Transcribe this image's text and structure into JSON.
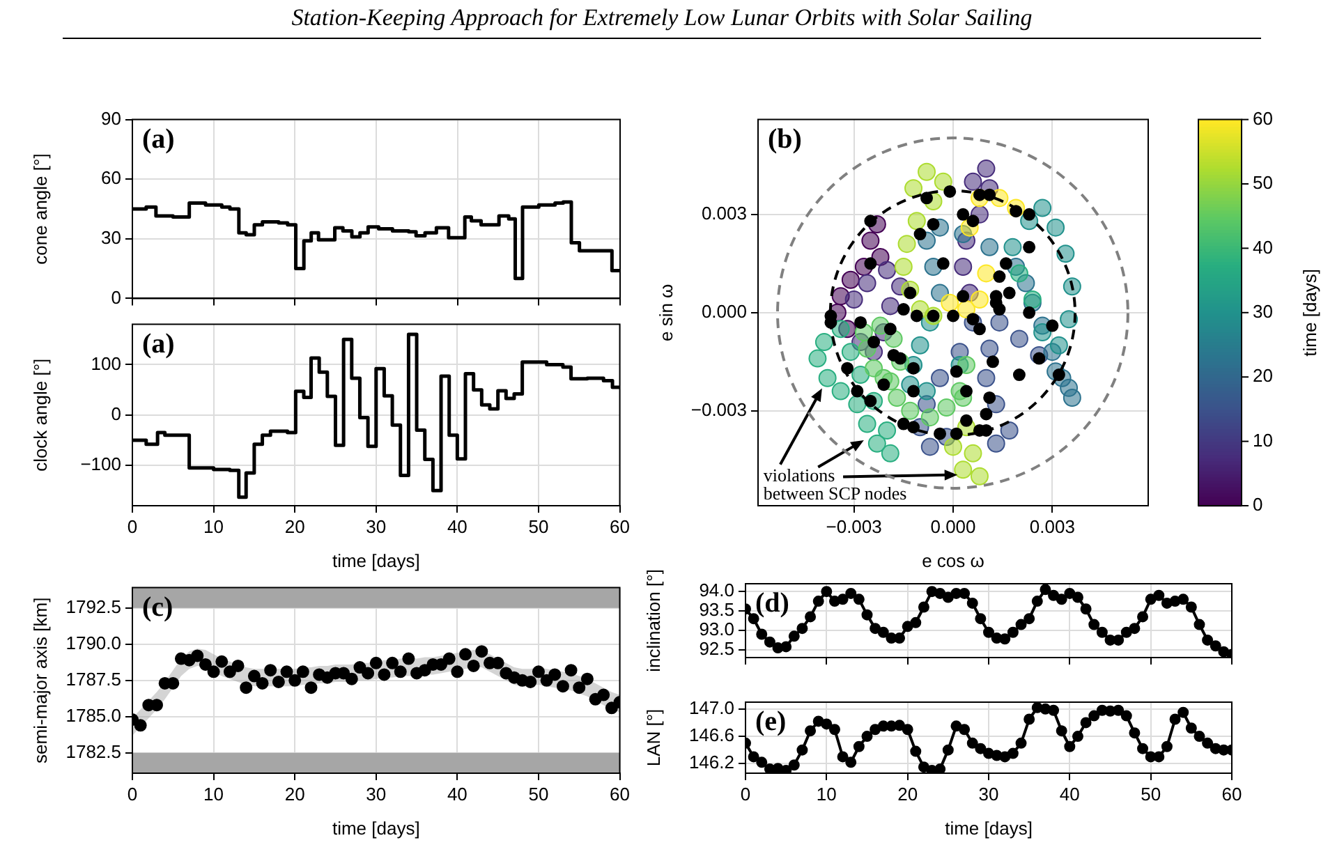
{
  "chart_data": [
    {
      "type": "step",
      "title": "(a)",
      "ylabel": "cone angle [°]",
      "annotations": [
        "Station-Keeping Approach for Extremely Low Lunar Orbits with Solar Sailing"
      ],
      "series": [
        {
          "color": "#000000",
          "x": [
            0,
            1.7,
            2.9,
            5,
            7,
            9,
            11,
            12,
            13.1,
            14,
            15,
            16,
            18,
            19.1,
            20.1,
            21.1,
            22,
            22.9,
            24.9,
            25.9,
            27,
            28,
            29,
            30.3,
            32,
            34,
            34.9,
            36,
            37.4,
            38.9,
            40.9,
            41.7,
            42.9,
            45.1,
            46.3,
            47.1,
            48,
            50,
            52,
            53,
            54,
            55,
            59,
            60
          ],
          "values": [
            45,
            46,
            41.5,
            41,
            48,
            47,
            46,
            45,
            33,
            32,
            37,
            38.5,
            38,
            37,
            15,
            29,
            33,
            29.5,
            35.5,
            34,
            31,
            33,
            36,
            35,
            34,
            33.5,
            31.5,
            33,
            35.5,
            30.5,
            41,
            39,
            37,
            41.5,
            40,
            10,
            46,
            47,
            48,
            48.5,
            28,
            24,
            14,
            14
          ]
        }
      ],
      "xlim": [
        0,
        60
      ],
      "xticks": [
        0,
        10,
        20,
        30,
        40,
        50,
        60
      ],
      "ylim": [
        0,
        90
      ],
      "yticks": [
        0,
        30,
        60,
        90
      ],
      "tick_labels": "y",
      "grid": true
    },
    {
      "type": "step",
      "title": "(a)",
      "xlabel": "time [days]",
      "ylabel": "clock angle [°]",
      "series": [
        {
          "color": "#000000",
          "x": [
            0,
            1.7,
            3.1,
            4,
            7,
            10,
            12,
            13.1,
            14,
            15,
            16,
            17,
            19.1,
            20.1,
            21.1,
            22,
            23,
            24,
            25,
            26,
            27,
            28,
            29,
            30,
            31,
            32,
            33,
            34,
            35,
            36,
            37,
            38,
            39,
            40,
            41,
            42,
            43,
            44,
            45,
            46,
            47,
            48,
            51,
            53,
            54,
            56,
            58,
            59.1,
            60
          ],
          "values": [
            -50,
            -58,
            -35,
            -40,
            -105,
            -108,
            -110,
            -163,
            -115,
            -58,
            -40,
            -32,
            -35,
            47,
            35,
            113,
            85,
            37,
            -60,
            150,
            73,
            -5,
            -62,
            92,
            38,
            -20,
            -120,
            160,
            -30,
            -88,
            -150,
            77,
            -40,
            -87,
            82,
            50,
            20,
            12,
            48,
            33,
            42,
            105,
            100,
            95,
            72,
            73,
            68,
            55,
            55
          ]
        }
      ],
      "xlim": [
        0,
        60
      ],
      "xticks": [
        0,
        10,
        20,
        30,
        40,
        50,
        60
      ],
      "ylim": [
        -180,
        180
      ],
      "yticks": [
        {
          "value": -100,
          "label": "−100"
        },
        0,
        100
      ],
      "grid": true
    },
    {
      "type": "scatter",
      "title": "(b)",
      "xlabel": "e cos ω",
      "ylabel": "e sin ω",
      "clabel": "time [days]",
      "clim": [
        0,
        60
      ],
      "cticks": [
        0,
        10,
        20,
        30,
        40,
        50,
        60
      ],
      "marker": "circle",
      "annotations": [
        {
          "text": "violations between SCP nodes",
          "x": -0.0027,
          "y": -0.0039
        }
      ],
      "series": [
        {
          "x": [
            -0.0023,
            -0.0025,
            -0.0022,
            -0.0027,
            -0.0031,
            -0.0034,
            -0.0035,
            -0.0032,
            -0.0028,
            -0.0024,
            -0.0021,
            -0.0019,
            -0.0016,
            -0.002,
            -0.0026,
            -0.003,
            0.0006,
            0.001,
            0.0011,
            0.0008,
            0.0004,
            0.0003,
            0.0005,
            0.0006,
            0.0002,
            -0.0004,
            -0.0008,
            -0.001,
            -0.0007,
            -0.0002,
            0.0013,
            0.0017,
            0.0013,
            0.001,
            0.0011,
            0.0014,
            0.002,
            0.0026,
            0.0031,
            0.0035,
            0.0036,
            0.0033,
            0.003,
            0.0027,
            0.0024,
            0.0022,
            0.0019,
            0.0011,
            0.0003,
            -0.0004,
            -0.0008,
            -0.0006,
            -0.0004,
            -0.0007,
            -0.001,
            -0.0012,
            -0.0013,
            -0.0008,
            0.0002,
            0.0018,
            0.0023,
            0.0027,
            0.0031,
            0.0034,
            0.0036,
            0.0035,
            0.0032,
            0.0027,
            0.0024,
            0.002,
            -0.0034,
            -0.0039,
            -0.0041,
            -0.0038,
            -0.0034,
            -0.0029,
            -0.0026,
            -0.0023,
            -0.0019,
            -0.002,
            -0.0024,
            -0.0028,
            -0.0031,
            -0.0027,
            -0.0022,
            -0.0018,
            -0.0016,
            -0.0019,
            -0.0024,
            -0.0026,
            -0.0021,
            -0.0017,
            -0.0013,
            -0.0007,
            -0.0002,
            0.0002,
            0.0004,
            0.0003,
            0.0004,
            0.0006,
            0.0008,
            0.0003,
            0,
            -0.0012,
            -0.0008,
            -0.0003,
            -0.0006,
            -0.0011,
            -0.0014,
            -0.0015,
            -0.0013,
            -0.001,
            -0.0006,
            -0.0001,
            0.0004,
            0.0008,
            0.001,
            0.0005,
            0.0008,
            0.0014,
            0.0019
          ],
          "values": [
            0.0027,
            0.0022,
            0.0017,
            0.0014,
            0.001,
            0.0005,
            0,
            -0.0005,
            -0.0009,
            -0.0012,
            -0.0006,
            0.0002,
            0.0008,
            0.0013,
            0.0009,
            0.0004,
            0.004,
            0.0044,
            0.0038,
            0.003,
            0.0022,
            0.0014,
            0.0006,
            -0.0003,
            -0.0012,
            -0.002,
            -0.0028,
            -0.0035,
            -0.0041,
            -0.0038,
            -0.004,
            -0.0036,
            -0.0028,
            -0.002,
            -0.0011,
            -0.0003,
            -0.0008,
            -0.0013,
            -0.0018,
            -0.0023,
            -0.0026,
            -0.002,
            -0.0012,
            -0.0004,
            0.0003,
            0.0009,
            0.0014,
            0.002,
            0.0024,
            0.0026,
            0.0022,
            0.0014,
            0.0006,
            -0.0003,
            -0.001,
            -0.0016,
            -0.0022,
            -0.0024,
            -0.0016,
            0.002,
            0.0028,
            0.0032,
            0.0026,
            0.0018,
            0.0008,
            -0.0002,
            -0.001,
            -0.0006,
            0.0004,
            0.0012,
            -0.0005,
            -0.0009,
            -0.0014,
            -0.002,
            -0.0024,
            -0.0028,
            -0.0034,
            -0.004,
            -0.0043,
            -0.0036,
            -0.0027,
            -0.0019,
            -0.0012,
            -0.0006,
            -0.0004,
            -0.0008,
            -0.0015,
            -0.0021,
            -0.0017,
            -0.0011,
            -0.002,
            -0.0026,
            -0.003,
            -0.0032,
            -0.0029,
            -0.0024,
            -0.0016,
            -0.0026,
            -0.0035,
            -0.0043,
            -0.005,
            -0.0048,
            -0.0041,
            0.0038,
            0.0043,
            0.004,
            0.0034,
            0.0028,
            0.0021,
            0.0014,
            0.0007,
            0.0001,
            -0.0001,
            0.0003,
            0.0001,
            0.0004,
            0.0012,
            0.0026,
            0.0035,
            0.0035,
            0.0032
          ],
          "colors": [
            "#440154",
            "#440154",
            "#440154",
            "#440154",
            "#440154",
            "#440154",
            "#440154",
            "#440154",
            "#472d7b",
            "#472d7b",
            "#472d7b",
            "#472d7b",
            "#472d7b",
            "#472d7b",
            "#472d7b",
            "#472d7b",
            "#472d7b",
            "#472d7b",
            "#472d7b",
            "#472d7b",
            "#472d7b",
            "#472d7b",
            "#472d7b",
            "#3b528b",
            "#3b528b",
            "#3b528b",
            "#3b528b",
            "#3b528b",
            "#3b528b",
            "#3b528b",
            "#3b528b",
            "#3b528b",
            "#3b528b",
            "#3b528b",
            "#3b528b",
            "#3b528b",
            "#3b528b",
            "#3b528b",
            "#2c728e",
            "#2c728e",
            "#2c728e",
            "#2c728e",
            "#2c728e",
            "#2c728e",
            "#2c728e",
            "#2c728e",
            "#2c728e",
            "#2c728e",
            "#2c728e",
            "#2c728e",
            "#2c728e",
            "#2c728e",
            "#2c728e",
            "#21918c",
            "#21918c",
            "#21918c",
            "#21918c",
            "#21918c",
            "#21918c",
            "#21918c",
            "#21918c",
            "#21918c",
            "#21918c",
            "#21918c",
            "#21918c",
            "#21918c",
            "#21918c",
            "#21918c",
            "#28ae80",
            "#28ae80",
            "#28ae80",
            "#28ae80",
            "#28ae80",
            "#28ae80",
            "#28ae80",
            "#28ae80",
            "#28ae80",
            "#28ae80",
            "#28ae80",
            "#28ae80",
            "#28ae80",
            "#28ae80",
            "#28ae80",
            "#5ec962",
            "#5ec962",
            "#5ec962",
            "#5ec962",
            "#5ec962",
            "#5ec962",
            "#5ec962",
            "#5ec962",
            "#5ec962",
            "#5ec962",
            "#5ec962",
            "#5ec962",
            "#5ec962",
            "#5ec962",
            "#5ec962",
            "#addc30",
            "#addc30",
            "#addc30",
            "#addc30",
            "#addc30",
            "#addc30",
            "#addc30",
            "#addc30",
            "#addc30",
            "#addc30",
            "#addc30",
            "#addc30",
            "#addc30",
            "#addc30",
            "#addc30",
            "#fde725",
            "#fde725",
            "#fde725",
            "#fde725",
            "#fde725",
            "#fde725",
            "#fde725",
            "#fde725"
          ]
        },
        {
          "color": "#000000",
          "x": [
            -0.0025,
            -0.0008,
            -0.0001,
            0.0008,
            0.0011,
            0.0019,
            0.0023,
            0.0003,
            0.0006,
            -0.0006,
            -0.001,
            0.0023,
            -0.0025,
            -0.0003,
            0.0016,
            0.0014,
            0.0017,
            -0.0013,
            0.0003,
            0.0013,
            0.0013,
            0.0014,
            -0.0015,
            -0.0011,
            -0.0006,
            0,
            0.0006,
            0.0008,
            0.0023,
            0.003,
            -0.0037,
            -0.0037,
            -0.0028,
            -0.0019,
            -0.0024,
            -0.0018,
            -0.0016,
            -0.0032,
            -0.0012,
            0.0012,
            0.0026,
            0.002,
            0.0032,
            -0.0021,
            0.0001,
            -0.0029,
            -0.0012,
            0.0004,
            0.0011,
            -0.0025,
            0.001,
            0.0004,
            -0.0015,
            -0.0012,
            -0.0004,
            0.0001,
            0.0008,
            0.001
          ],
          "values": [
            0.0028,
            0.0035,
            0.0037,
            0.0036,
            0.0036,
            0.0031,
            0.003,
            0.003,
            0.0028,
            0.0027,
            0.0024,
            0.002,
            0.0015,
            0.0015,
            0.0015,
            0.0011,
            0.0006,
            0.0006,
            0.0005,
            0.0005,
            0.0003,
            0.0001,
            0.0001,
            -0.0001,
            -0.0001,
            -0.0001,
            -0.0002,
            -0.0005,
            0,
            -0.0004,
            -0.0001,
            -0.0003,
            -0.0003,
            -0.0005,
            -0.0009,
            -0.0013,
            -0.0014,
            -0.0017,
            -0.0017,
            -0.0015,
            -0.0014,
            -0.0019,
            -0.0019,
            -0.0022,
            -0.0018,
            -0.0024,
            -0.0024,
            -0.0024,
            -0.0026,
            -0.0027,
            -0.0031,
            -0.0033,
            -0.0034,
            -0.0035,
            -0.0037,
            -0.0037,
            -0.0036,
            -0.0036
          ]
        }
      ],
      "xlim": [
        -0.0059,
        0.0059
      ],
      "xticks": [
        {
          "value": -0.003,
          "label": "−0.003"
        },
        {
          "value": 0,
          "label": "0.000"
        },
        {
          "value": 0.003,
          "label": "0.003"
        }
      ],
      "ylim": [
        -0.0059,
        0.0059
      ],
      "yticks": [
        {
          "value": -0.003,
          "label": "−0.003"
        },
        {
          "value": 0,
          "label": "0.000"
        },
        {
          "value": 0.003,
          "label": "0.003"
        }
      ],
      "grid": true
    },
    {
      "type": "scatter",
      "title": "(c)",
      "xlabel": "time [days]",
      "ylabel": "semi-major axis [km]",
      "marker": "circle",
      "x": [
        0,
        1,
        2,
        3,
        4,
        5,
        6,
        7,
        8,
        9,
        10,
        11,
        12,
        13,
        14,
        15,
        16,
        17,
        18,
        19,
        20,
        21,
        22,
        23,
        24,
        25,
        26,
        27,
        28,
        29,
        30,
        31,
        32,
        33,
        34,
        35,
        36,
        37,
        38,
        39,
        40,
        41,
        42,
        43,
        44,
        45,
        46,
        47,
        48,
        49,
        50,
        51,
        52,
        53,
        54,
        55,
        56,
        57,
        58,
        59,
        60
      ],
      "series": [
        {
          "color": "#000000",
          "values": [
            1784.8,
            1784.4,
            1785.8,
            1785.8,
            1787.3,
            1787.3,
            1789.0,
            1788.9,
            1789.2,
            1788.6,
            1788.1,
            1788.8,
            1788.1,
            1788.5,
            1787.0,
            1787.8,
            1787.3,
            1788.2,
            1787.4,
            1788.1,
            1787.5,
            1788.1,
            1787.0,
            1787.9,
            1787.7,
            1788.0,
            1788.0,
            1787.6,
            1788.4,
            1788.0,
            1788.7,
            1787.9,
            1788.7,
            1788.1,
            1789.0,
            1788.0,
            1788.2,
            1788.6,
            1788.6,
            1789.0,
            1788.1,
            1789.3,
            1788.5,
            1789.5,
            1788.7,
            1788.7,
            1788.0,
            1787.7,
            1787.5,
            1787.4,
            1788.1,
            1787.5,
            1787.9,
            1787.1,
            1788.2,
            1787.0,
            1787.6,
            1786.2,
            1786.5,
            1785.6,
            1786.0
          ],
          "lower": [
            1783.7,
            1784.3,
            1784.9,
            1785.5,
            1786.2,
            1787.0,
            1787.8,
            1788.3,
            1788.5,
            1788.4,
            1788.1,
            1787.8,
            1787.6,
            1787.4,
            1787.2,
            1787.1,
            1787.1,
            1787.1,
            1787.1,
            1787.1,
            1787.1,
            1787.2,
            1787.2,
            1787.3,
            1787.3,
            1787.4,
            1787.4,
            1787.4,
            1787.5,
            1787.5,
            1787.6,
            1787.7,
            1787.7,
            1787.8,
            1787.8,
            1787.8,
            1787.9,
            1787.9,
            1788.0,
            1788.1,
            1788.2,
            1788.3,
            1788.4,
            1788.4,
            1788.1,
            1787.8,
            1787.5,
            1787.2,
            1787.1,
            1787.1,
            1787.2,
            1787.1,
            1787.0,
            1786.9,
            1786.8,
            1786.6,
            1786.4,
            1786.1,
            1785.8,
            1785.5,
            1785.3
          ],
          "upper": [
            1784.9,
            1785.5,
            1786.1,
            1786.7,
            1787.4,
            1788.2,
            1789.0,
            1789.5,
            1789.7,
            1789.6,
            1789.3,
            1789.0,
            1788.8,
            1788.6,
            1788.4,
            1788.3,
            1788.3,
            1788.3,
            1788.3,
            1788.3,
            1788.3,
            1788.4,
            1788.4,
            1788.5,
            1788.5,
            1788.6,
            1788.6,
            1788.6,
            1788.7,
            1788.7,
            1788.8,
            1788.9,
            1788.9,
            1789.0,
            1789.0,
            1789.0,
            1789.1,
            1789.1,
            1789.2,
            1789.3,
            1789.4,
            1789.5,
            1789.6,
            1789.6,
            1789.3,
            1789.0,
            1788.7,
            1788.4,
            1788.3,
            1788.3,
            1788.4,
            1788.3,
            1788.2,
            1788.1,
            1788.0,
            1787.8,
            1787.6,
            1787.3,
            1787.0,
            1786.7,
            1786.5
          ]
        }
      ],
      "bands": [
        {
          "axis": "y",
          "from": 1792.5,
          "to": 1793.9,
          "color": "#a6a6a6"
        },
        {
          "axis": "y",
          "from": 1781.1,
          "to": 1782.5,
          "color": "#a6a6a6"
        }
      ],
      "xlim": [
        0,
        60
      ],
      "xticks": [
        0,
        10,
        20,
        30,
        40,
        50,
        60
      ],
      "ylim": [
        1781.1,
        1793.9
      ],
      "yticks": [
        {
          "value": 1782.5,
          "label": "1782.5"
        },
        {
          "value": 1785,
          "label": "1785.0"
        },
        {
          "value": 1787.5,
          "label": "1787.5"
        },
        {
          "value": 1790,
          "label": "1790.0"
        },
        {
          "value": 1792.5,
          "label": "1792.5"
        }
      ],
      "grid": true
    },
    {
      "type": "line",
      "title": "(d)",
      "ylabel": "inclination [°]",
      "marker": "circle",
      "x": [
        0,
        1,
        2,
        3,
        4,
        5,
        6,
        7,
        8,
        9,
        10,
        11,
        12,
        13,
        14,
        15,
        16,
        17,
        18,
        19,
        20,
        21,
        22,
        23,
        24,
        25,
        26,
        27,
        28,
        29,
        30,
        31,
        32,
        33,
        34,
        35,
        36,
        37,
        38,
        39,
        40,
        41,
        42,
        43,
        44,
        45,
        46,
        47,
        48,
        49,
        50,
        51,
        52,
        53,
        54,
        55,
        56,
        57,
        58,
        59,
        60
      ],
      "series": [
        {
          "color": "#000000",
          "values": [
            93.55,
            93.3,
            92.9,
            92.7,
            92.55,
            92.58,
            92.85,
            93.05,
            93.35,
            93.75,
            94.0,
            93.75,
            93.8,
            93.95,
            93.8,
            93.4,
            93.05,
            92.95,
            92.8,
            92.8,
            93.1,
            93.2,
            93.6,
            94.0,
            93.95,
            93.85,
            93.95,
            93.95,
            93.7,
            93.3,
            92.95,
            92.8,
            92.78,
            92.95,
            93.15,
            93.3,
            93.75,
            94.05,
            93.9,
            93.8,
            93.95,
            93.85,
            93.55,
            93.15,
            92.95,
            92.75,
            92.75,
            92.95,
            93.05,
            93.35,
            93.8,
            93.9,
            93.7,
            93.75,
            93.8,
            93.6,
            93.15,
            92.75,
            92.6,
            92.45,
            92.38
          ]
        }
      ],
      "xlim": [
        0,
        60
      ],
      "xticks": [
        0,
        10,
        20,
        30,
        40,
        50,
        60
      ],
      "ylim": [
        92.3,
        94.2
      ],
      "yticks": [
        {
          "value": 92.5,
          "label": "92.5"
        },
        {
          "value": 93,
          "label": "93.0"
        },
        {
          "value": 93.5,
          "label": "93.5"
        },
        {
          "value": 94,
          "label": "94.0"
        }
      ],
      "tick_labels": "y",
      "grid": true
    },
    {
      "type": "line",
      "title": "(e)",
      "xlabel": "time [days]",
      "ylabel": "LAN [°]",
      "marker": "circle",
      "x": [
        0,
        1,
        2,
        3,
        4,
        5,
        6,
        7,
        8,
        9,
        10,
        11,
        12,
        13,
        14,
        15,
        16,
        17,
        18,
        19,
        20,
        21,
        22,
        23,
        24,
        25,
        26,
        27,
        28,
        29,
        30,
        31,
        32,
        33,
        34,
        35,
        36,
        37,
        38,
        39,
        40,
        41,
        42,
        43,
        44,
        45,
        46,
        47,
        48,
        49,
        50,
        51,
        52,
        53,
        54,
        55,
        56,
        57,
        58,
        59,
        60
      ],
      "series": [
        {
          "color": "#000000",
          "values": [
            146.5,
            146.3,
            146.22,
            146.12,
            146.13,
            146.1,
            146.18,
            146.4,
            146.68,
            146.82,
            146.78,
            146.7,
            146.3,
            146.22,
            146.45,
            146.6,
            146.7,
            146.75,
            146.75,
            146.76,
            146.7,
            146.38,
            146.15,
            146.1,
            146.12,
            146.4,
            146.75,
            146.7,
            146.5,
            146.42,
            146.35,
            146.32,
            146.3,
            146.35,
            146.5,
            146.85,
            147.02,
            147.0,
            146.98,
            146.68,
            146.45,
            146.6,
            146.8,
            146.9,
            146.98,
            146.97,
            146.98,
            146.9,
            146.65,
            146.42,
            146.3,
            146.3,
            146.45,
            146.85,
            146.95,
            146.72,
            146.6,
            146.5,
            146.42,
            146.4,
            146.4
          ]
        }
      ],
      "xlim": [
        0,
        60
      ],
      "xticks": [
        0,
        10,
        20,
        30,
        40,
        50,
        60
      ],
      "ylim": [
        146.06,
        147.1
      ],
      "yticks": [
        {
          "value": 146.2,
          "label": "146.2"
        },
        {
          "value": 146.6,
          "label": "146.6"
        },
        {
          "value": 147,
          "label": "147.0"
        }
      ],
      "grid": true
    }
  ]
}
